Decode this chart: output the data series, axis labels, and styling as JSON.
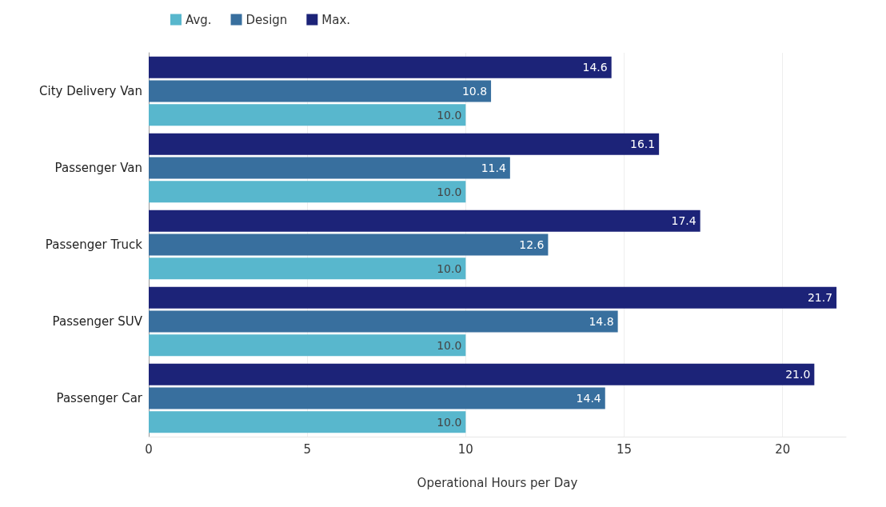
{
  "chart_data": {
    "type": "bar",
    "orientation": "horizontal",
    "xlabel": "Operational Hours per Day",
    "categories": [
      "City Delivery Van",
      "Passenger Van",
      "Passenger Truck",
      "Passenger SUV",
      "Passenger Car"
    ],
    "series": [
      {
        "name": "Avg.",
        "color": "#58b7cd",
        "values": [
          10,
          10,
          10,
          10,
          10
        ],
        "value_labels": [
          "10.0",
          "10.0",
          "10.0",
          "10.0",
          "10.0"
        ]
      },
      {
        "name": "Design",
        "color": "#386f9e",
        "values": [
          10.8,
          11.4,
          12.6,
          14.8,
          14.4
        ]
      },
      {
        "name": "Max.",
        "color": "#1c2378",
        "values": [
          14.6,
          16.1,
          17.4,
          21.7,
          21
        ],
        "value_labels": [
          "14.6",
          "16.1",
          "17.4",
          "21.7",
          "21.0"
        ]
      }
    ],
    "xlim": [
      0,
      22
    ],
    "xticks": [
      0,
      5,
      10,
      15,
      20
    ],
    "grid": "x",
    "legend": "top left",
    "data_labels": true
  }
}
